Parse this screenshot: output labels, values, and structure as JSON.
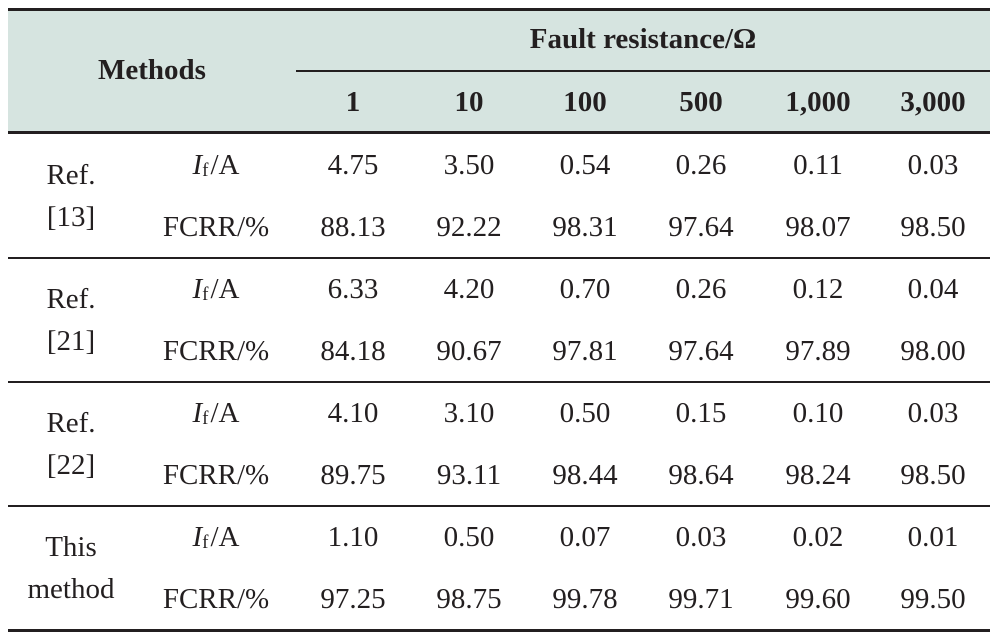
{
  "table": {
    "header": {
      "methods_label": "Methods",
      "group_label": "Fault resistance/Ω",
      "columns": [
        "1",
        "10",
        "100",
        "500",
        "1,000",
        "3,000"
      ]
    },
    "groups": [
      {
        "method_line1": "Ref.",
        "method_line2": "[13]",
        "current_row": {
          "var": "I",
          "sub": "f",
          "unit": "/A",
          "values": [
            "4.75",
            "3.50",
            "0.54",
            "0.26",
            "0.11",
            "0.03"
          ]
        },
        "fcrr_row": {
          "label": "FCRR/%",
          "values": [
            "88.13",
            "92.22",
            "98.31",
            "97.64",
            "98.07",
            "98.50"
          ]
        }
      },
      {
        "method_line1": "Ref.",
        "method_line2": "[21]",
        "current_row": {
          "var": "I",
          "sub": "f",
          "unit": "/A",
          "values": [
            "6.33",
            "4.20",
            "0.70",
            "0.26",
            "0.12",
            "0.04"
          ]
        },
        "fcrr_row": {
          "label": "FCRR/%",
          "values": [
            "84.18",
            "90.67",
            "97.81",
            "97.64",
            "97.89",
            "98.00"
          ]
        }
      },
      {
        "method_line1": "Ref.",
        "method_line2": "[22]",
        "current_row": {
          "var": "I",
          "sub": "f",
          "unit": "/A",
          "values": [
            "4.10",
            "3.10",
            "0.50",
            "0.15",
            "0.10",
            "0.03"
          ]
        },
        "fcrr_row": {
          "label": "FCRR/%",
          "values": [
            "89.75",
            "93.11",
            "98.44",
            "98.64",
            "98.24",
            "98.50"
          ]
        }
      },
      {
        "method_line1": "This",
        "method_line2": "method",
        "current_row": {
          "var": "I",
          "sub": "f",
          "unit": "/A",
          "values": [
            "1.10",
            "0.50",
            "0.07",
            "0.03",
            "0.02",
            "0.01"
          ]
        },
        "fcrr_row": {
          "label": "FCRR/%",
          "values": [
            "97.25",
            "98.75",
            "99.78",
            "99.71",
            "99.60",
            "99.50"
          ]
        }
      }
    ]
  }
}
